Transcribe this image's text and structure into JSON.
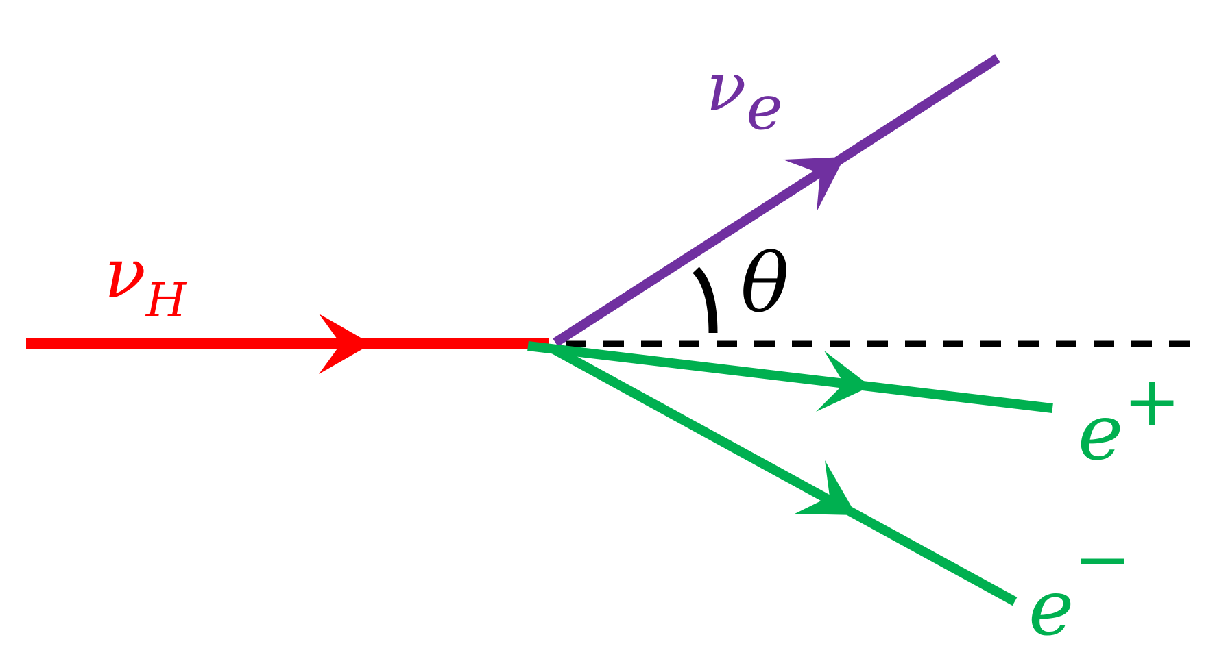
{
  "labels": {
    "incoming": {
      "base": "ν",
      "sub": "H"
    },
    "outgoing_neutrino": {
      "base": "ν",
      "sub": "e"
    },
    "angle": "θ",
    "positron": {
      "base": "e",
      "sup": "+"
    },
    "electron": {
      "base": "e",
      "sup": "−"
    }
  },
  "colors": {
    "incoming": "#ff0000",
    "neutrino": "#7030a0",
    "electron_pair": "#00b050",
    "reference_line": "#000000"
  }
}
